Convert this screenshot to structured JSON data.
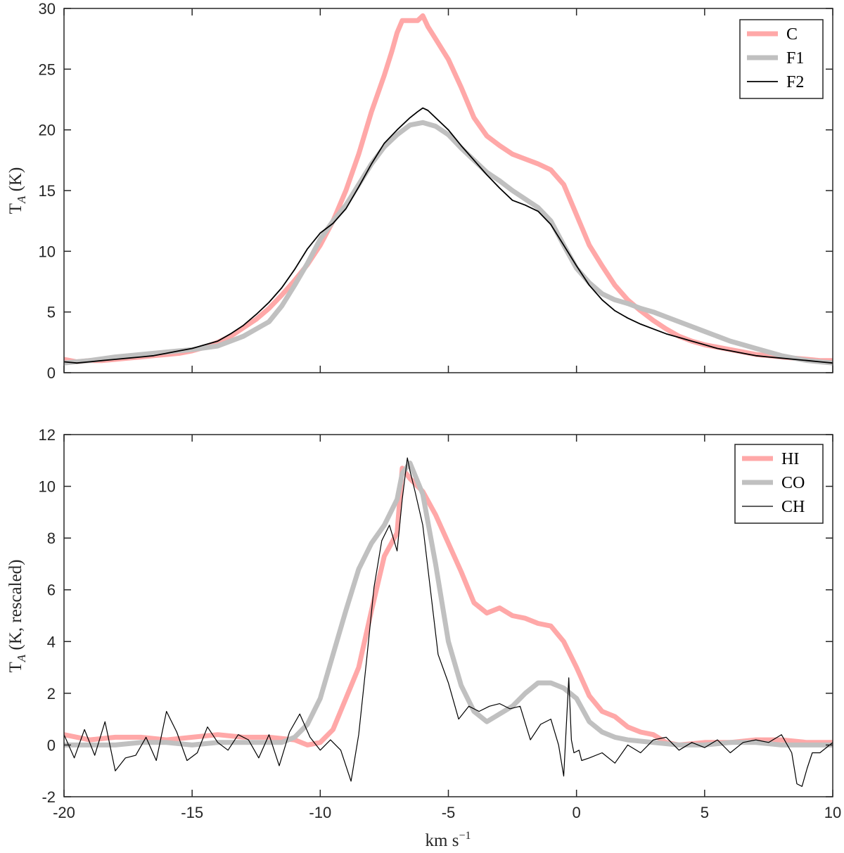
{
  "chart_data": [
    {
      "type": "line",
      "panel": "top",
      "title": "",
      "xlabel": "",
      "ylabel_main": "T",
      "ylabel_sub": "A",
      "ylabel_unit": " (K)",
      "xlim": [
        -20,
        10
      ],
      "ylim": [
        0,
        30
      ],
      "xticks": [
        -20,
        -15,
        -10,
        -5,
        0,
        5,
        10
      ],
      "yticks": [
        0,
        5,
        10,
        15,
        20,
        25,
        30
      ],
      "xtick_labels_visible": false,
      "legend_position": "top-right",
      "series": [
        {
          "name": "C",
          "color": "#ffa8a8",
          "style": "thick",
          "x": [
            -20,
            -19.5,
            -19,
            -18.5,
            -18,
            -17.5,
            -17,
            -16.5,
            -16,
            -15.5,
            -15,
            -14.5,
            -14,
            -13.5,
            -13,
            -12.5,
            -12,
            -11.5,
            -11,
            -10.5,
            -10,
            -9.5,
            -9,
            -8.5,
            -8,
            -7.5,
            -7.2,
            -7,
            -6.8,
            -6.5,
            -6.2,
            -6,
            -5.8,
            -5.5,
            -5,
            -4.5,
            -4,
            -3.5,
            -3,
            -2.5,
            -2,
            -1.5,
            -1,
            -0.5,
            0,
            0.5,
            1,
            1.5,
            2,
            2.5,
            3,
            3.5,
            4,
            4.5,
            5,
            5.5,
            6,
            6.5,
            7,
            7.5,
            8,
            8.5,
            9,
            9.5,
            10
          ],
          "y": [
            1.1,
            0.9,
            1.0,
            1.0,
            1.1,
            1.2,
            1.3,
            1.4,
            1.5,
            1.6,
            1.8,
            2.1,
            2.5,
            3.0,
            3.7,
            4.4,
            5.3,
            6.4,
            7.6,
            8.9,
            10.5,
            12.5,
            15.0,
            18.0,
            21.5,
            24.5,
            26.5,
            28.0,
            29.0,
            29.0,
            29.0,
            29.4,
            28.5,
            27.5,
            25.8,
            23.5,
            21.0,
            19.5,
            18.7,
            18.0,
            17.6,
            17.2,
            16.7,
            15.5,
            13.0,
            10.5,
            8.8,
            7.2,
            6.0,
            5.1,
            4.3,
            3.6,
            3.0,
            2.6,
            2.3,
            2.1,
            1.9,
            1.7,
            1.5,
            1.4,
            1.3,
            1.2,
            1.1,
            1.0,
            1.0
          ]
        },
        {
          "name": "F1",
          "color": "#c0c0c0",
          "style": "thick",
          "x": [
            -20,
            -19,
            -18,
            -17,
            -16,
            -15,
            -14,
            -13,
            -12,
            -11.5,
            -11,
            -10.5,
            -10,
            -9.5,
            -9,
            -8.5,
            -8,
            -7.5,
            -7,
            -6.5,
            -6,
            -5.5,
            -5,
            -4.5,
            -4,
            -3.5,
            -3,
            -2.5,
            -2,
            -1.5,
            -1,
            -0.5,
            0,
            0.5,
            1,
            1.5,
            2,
            2.5,
            3,
            3.5,
            4,
            4.5,
            5,
            5.5,
            6,
            6.5,
            7,
            7.5,
            8,
            8.5,
            9,
            9.5,
            10
          ],
          "y": [
            0.8,
            1.0,
            1.3,
            1.5,
            1.7,
            1.9,
            2.2,
            3.0,
            4.2,
            5.5,
            7.2,
            9.0,
            11.0,
            12.5,
            13.8,
            15.5,
            17.2,
            18.6,
            19.6,
            20.4,
            20.6,
            20.3,
            19.6,
            18.5,
            17.5,
            16.5,
            15.8,
            15.0,
            14.3,
            13.6,
            12.5,
            10.5,
            8.6,
            7.4,
            6.5,
            6.0,
            5.7,
            5.3,
            5.0,
            4.6,
            4.2,
            3.8,
            3.4,
            3.0,
            2.6,
            2.3,
            2.0,
            1.7,
            1.4,
            1.2,
            1.0,
            0.9,
            0.8
          ]
        },
        {
          "name": "F2",
          "color": "#000000",
          "style": "thin",
          "x": [
            -20,
            -19.5,
            -19,
            -18.5,
            -18,
            -17.5,
            -17,
            -16.5,
            -16,
            -15.5,
            -15,
            -14.5,
            -14,
            -13.5,
            -13,
            -12.5,
            -12,
            -11.5,
            -11,
            -10.5,
            -10,
            -9.5,
            -9,
            -8.5,
            -8,
            -7.5,
            -7,
            -6.5,
            -6.2,
            -6,
            -5.8,
            -5.5,
            -5,
            -4.5,
            -4,
            -3.5,
            -3,
            -2.5,
            -2,
            -1.5,
            -1,
            -0.5,
            0,
            0.5,
            1,
            1.5,
            2,
            2.5,
            3,
            3.5,
            4,
            4.5,
            5,
            5.5,
            6,
            6.5,
            7,
            7.5,
            8,
            8.5,
            9,
            9.5,
            10
          ],
          "y": [
            0.9,
            0.8,
            0.9,
            1.0,
            1.1,
            1.2,
            1.3,
            1.4,
            1.6,
            1.8,
            2.0,
            2.3,
            2.6,
            3.2,
            3.9,
            4.8,
            5.8,
            7.0,
            8.5,
            10.2,
            11.5,
            12.3,
            13.5,
            15.3,
            17.2,
            18.9,
            20.0,
            21.0,
            21.5,
            21.8,
            21.6,
            21.0,
            20.0,
            18.7,
            17.5,
            16.3,
            15.2,
            14.2,
            13.8,
            13.3,
            12.2,
            10.5,
            8.8,
            7.2,
            6.0,
            5.1,
            4.5,
            4.0,
            3.6,
            3.2,
            2.9,
            2.6,
            2.3,
            2.0,
            1.8,
            1.6,
            1.4,
            1.3,
            1.2,
            1.1,
            1.0,
            0.9,
            0.8
          ]
        }
      ]
    },
    {
      "type": "line",
      "panel": "bottom",
      "title": "",
      "xlabel_main": "km s",
      "xlabel_sup": "−1",
      "ylabel_main": "T",
      "ylabel_sub": "A",
      "ylabel_unit": " (K, rescaled)",
      "xlim": [
        -20,
        10
      ],
      "ylim": [
        -2,
        12
      ],
      "xticks": [
        -20,
        -15,
        -10,
        -5,
        0,
        5,
        10
      ],
      "xtick_labels": [
        "-20",
        "-15",
        "-10",
        "-5",
        "0",
        "5",
        "10"
      ],
      "yticks": [
        -2,
        0,
        2,
        4,
        6,
        8,
        10,
        12
      ],
      "ytick_labels": [
        "-2",
        "0",
        "2",
        "4",
        "6",
        "8",
        "10",
        "12"
      ],
      "legend_position": "top-right",
      "series": [
        {
          "name": "HI",
          "color": "#ffa8a8",
          "style": "thick",
          "x": [
            -20,
            -19,
            -18,
            -17,
            -16,
            -15,
            -14,
            -13,
            -12,
            -11,
            -10.5,
            -10,
            -9.5,
            -9,
            -8.5,
            -8,
            -7.5,
            -7,
            -6.8,
            -6.5,
            -6,
            -5.5,
            -5,
            -4.5,
            -4,
            -3.5,
            -3,
            -2.5,
            -2,
            -1.5,
            -1,
            -0.5,
            0,
            0.5,
            1,
            1.5,
            2,
            2.5,
            3,
            3.5,
            4,
            5,
            6,
            7,
            8,
            9,
            10
          ],
          "y": [
            0.4,
            0.2,
            0.3,
            0.3,
            0.2,
            0.3,
            0.4,
            0.3,
            0.3,
            0.2,
            0.0,
            0.1,
            0.6,
            1.8,
            3.0,
            5.2,
            7.3,
            8.2,
            10.7,
            10.3,
            9.8,
            8.9,
            7.8,
            6.7,
            5.5,
            5.1,
            5.3,
            5.0,
            4.9,
            4.7,
            4.6,
            4.0,
            3.0,
            1.9,
            1.3,
            1.1,
            0.7,
            0.5,
            0.4,
            0.1,
            0.0,
            0.1,
            0.1,
            0.2,
            0.2,
            0.1,
            0.1
          ]
        },
        {
          "name": "CO",
          "color": "#c0c0c0",
          "style": "thick",
          "x": [
            -20,
            -19,
            -18,
            -17,
            -16,
            -15,
            -14,
            -13,
            -12,
            -11.5,
            -11,
            -10.5,
            -10,
            -9.5,
            -9,
            -8.5,
            -8,
            -7.5,
            -7,
            -6.8,
            -6.5,
            -6,
            -5.5,
            -5,
            -4.5,
            -4,
            -3.5,
            -3,
            -2.5,
            -2,
            -1.5,
            -1,
            -0.5,
            0,
            0.5,
            1,
            1.5,
            2,
            3,
            4,
            5,
            6,
            7,
            8,
            9,
            10
          ],
          "y": [
            0.0,
            0.0,
            0.0,
            0.1,
            0.1,
            0.0,
            0.1,
            0.1,
            0.1,
            0.1,
            0.3,
            0.8,
            1.8,
            3.5,
            5.2,
            6.8,
            7.8,
            8.5,
            9.5,
            10.5,
            10.9,
            9.7,
            7.0,
            4.0,
            2.3,
            1.3,
            0.9,
            1.2,
            1.5,
            2.0,
            2.4,
            2.4,
            2.2,
            1.8,
            0.9,
            0.5,
            0.3,
            0.2,
            0.1,
            0.0,
            0.0,
            0.1,
            0.1,
            0.0,
            0.0,
            0.0
          ]
        },
        {
          "name": "CH",
          "color": "#000000",
          "style": "thin",
          "x": [
            -20,
            -19.6,
            -19.2,
            -18.8,
            -18.4,
            -18,
            -17.6,
            -17.2,
            -16.8,
            -16.4,
            -16,
            -15.6,
            -15.2,
            -14.8,
            -14.4,
            -14,
            -13.6,
            -13.2,
            -12.8,
            -12.4,
            -12,
            -11.6,
            -11.2,
            -10.8,
            -10.4,
            -10,
            -9.6,
            -9.2,
            -8.8,
            -8.5,
            -8.2,
            -7.9,
            -7.6,
            -7.3,
            -7,
            -6.8,
            -6.6,
            -6.5,
            -6.3,
            -6,
            -5.7,
            -5.4,
            -5,
            -4.6,
            -4.2,
            -3.8,
            -3.4,
            -3,
            -2.6,
            -2.2,
            -1.8,
            -1.4,
            -1,
            -0.7,
            -0.5,
            -0.3,
            -0.2,
            -0.1,
            0.1,
            0.2,
            0.5,
            1,
            1.5,
            2,
            2.5,
            3,
            3.5,
            4,
            4.5,
            5,
            5.5,
            6,
            6.5,
            7,
            7.5,
            8,
            8.4,
            8.6,
            8.8,
            9,
            9.2,
            9.5,
            10
          ],
          "y": [
            0.4,
            -0.5,
            0.6,
            -0.4,
            0.9,
            -1.0,
            -0.5,
            -0.4,
            0.3,
            -0.6,
            1.3,
            0.5,
            -0.6,
            -0.3,
            0.7,
            0.1,
            -0.2,
            0.4,
            0.2,
            -0.5,
            0.4,
            -0.8,
            0.5,
            1.2,
            0.3,
            -0.2,
            0.2,
            -0.2,
            -1.4,
            0.4,
            3.2,
            6.1,
            7.9,
            8.5,
            7.5,
            9.5,
            11.1,
            10.6,
            9.8,
            8.5,
            6.0,
            3.5,
            2.4,
            1.0,
            1.5,
            1.3,
            1.5,
            1.6,
            1.4,
            1.5,
            0.2,
            0.8,
            1.0,
            0.0,
            -1.2,
            2.6,
            0.2,
            -0.3,
            -0.2,
            -0.6,
            -0.5,
            -0.3,
            -0.7,
            0.0,
            -0.3,
            0.2,
            0.3,
            -0.2,
            0.1,
            -0.1,
            0.2,
            -0.3,
            0.1,
            0.2,
            0.1,
            0.4,
            -0.3,
            -1.5,
            -1.6,
            -0.9,
            -0.3,
            -0.3,
            0.1
          ]
        }
      ]
    }
  ]
}
